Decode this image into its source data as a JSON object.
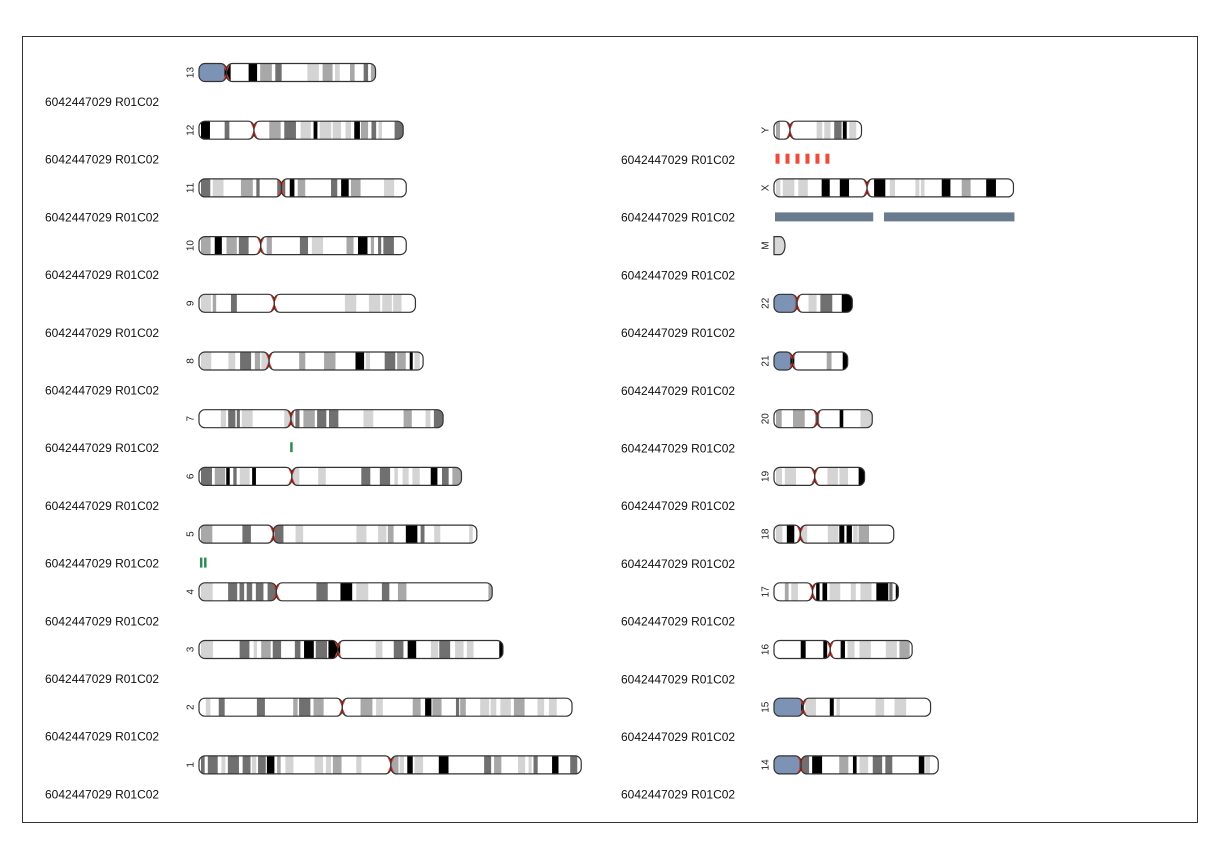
{
  "plot": {
    "type": "karyotype-ideogram",
    "sample_label": "6042447029  R01C02",
    "colors": {
      "outline": "#333333",
      "centromere": "#e8392c",
      "acrocentric_arm": "#7d93b5",
      "stain_gneg": "#ffffff",
      "stain_gpos25": "#d4d4d4",
      "stain_gpos50": "#a8a8a8",
      "stain_gpos75": "#707070",
      "stain_gpos100": "#000000",
      "marker_green": "#2e8b57",
      "marker_red": "#ee4b3a",
      "marker_slate": "#6b7b8e"
    },
    "chromosomes": [
      {
        "name": "13",
        "length": 115,
        "centromere": 17.9,
        "acrocentric": true
      },
      {
        "name": "12",
        "length": 133,
        "centromere": 35.8
      },
      {
        "name": "11",
        "length": 135,
        "centromere": 53.7
      },
      {
        "name": "10",
        "length": 135,
        "centromere": 40.2
      },
      {
        "name": "9",
        "length": 141,
        "centromere": 49.0
      },
      {
        "name": "8",
        "length": 146,
        "centromere": 45.6
      },
      {
        "name": "7",
        "length": 159,
        "centromere": 59.9
      },
      {
        "name": "6",
        "length": 171,
        "centromere": 60.5
      },
      {
        "name": "5",
        "length": 181,
        "centromere": 48.4
      },
      {
        "name": "4",
        "length": 191,
        "centromere": 50.4
      },
      {
        "name": "3",
        "length": 198,
        "centromere": 90.5
      },
      {
        "name": "2",
        "length": 243,
        "centromere": 93.3
      },
      {
        "name": "1",
        "length": 249,
        "centromere": 125.0
      },
      {
        "name": "Y",
        "length": 57,
        "centromere": 10.4
      },
      {
        "name": "X",
        "length": 156,
        "centromere": 60.6
      },
      {
        "name": "M",
        "length": 4,
        "centromere": 0
      },
      {
        "name": "22",
        "length": 51,
        "centromere": 15.0,
        "acrocentric": true
      },
      {
        "name": "21",
        "length": 48,
        "centromere": 12.0,
        "acrocentric": true
      },
      {
        "name": "20",
        "length": 64,
        "centromere": 28.1
      },
      {
        "name": "19",
        "length": 59,
        "centromere": 26.5
      },
      {
        "name": "18",
        "length": 78,
        "centromere": 17.2
      },
      {
        "name": "17",
        "length": 81,
        "centromere": 25.1
      },
      {
        "name": "16",
        "length": 90,
        "centromere": 36.6
      },
      {
        "name": "15",
        "length": 102,
        "centromere": 19.0,
        "acrocentric": true
      },
      {
        "name": "14",
        "length": 107,
        "centromere": 17.6,
        "acrocentric": true
      }
    ],
    "markers": [
      {
        "chrom": "7",
        "style": "tick",
        "color": "#2e8b57",
        "positions": [
          59.4
        ]
      },
      {
        "chrom": "5",
        "style": "tick",
        "color": "#2e8b57",
        "positions": [
          0.6,
          3.3
        ]
      },
      {
        "chrom": "Y",
        "style": "ticks",
        "color": "#ee4b3a",
        "positions": [
          1.0,
          7.5,
          14.0,
          20.5,
          27.0,
          33.5
        ]
      },
      {
        "chrom": "X",
        "style": "bars",
        "color": "#6b7b8e",
        "ranges": [
          [
            0.0,
            64.0
          ],
          [
            71.0,
            156.0
          ]
        ]
      }
    ]
  }
}
